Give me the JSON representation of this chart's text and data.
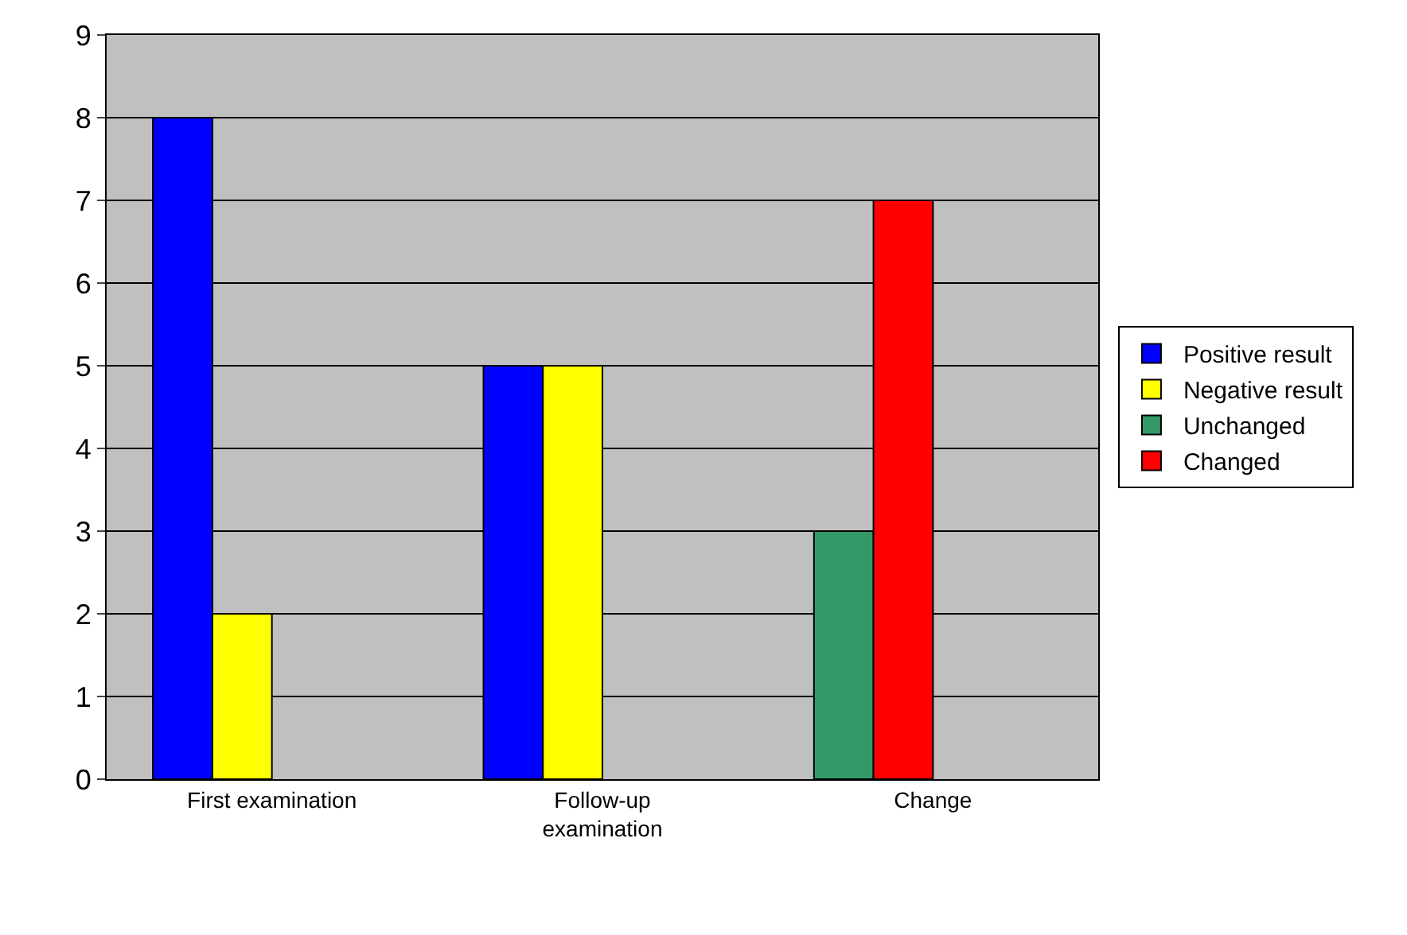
{
  "chart_data": {
    "type": "bar",
    "categories": [
      "First examination",
      "Follow-up examination",
      "Change"
    ],
    "series": [
      {
        "name": "Positive result",
        "color": "#0000ff",
        "values": [
          8,
          5,
          null
        ]
      },
      {
        "name": "Negative result",
        "color": "#ffff00",
        "values": [
          2,
          5,
          null
        ]
      },
      {
        "name": "Unchanged",
        "color": "#339966",
        "values": [
          null,
          null,
          3
        ]
      },
      {
        "name": "Changed",
        "color": "#ff0000",
        "values": [
          null,
          null,
          7
        ]
      }
    ],
    "ylim": [
      0,
      9
    ],
    "yticks": [
      0,
      1,
      2,
      3,
      4,
      5,
      6,
      7,
      8,
      9
    ],
    "grid": "y",
    "legend": "right"
  }
}
